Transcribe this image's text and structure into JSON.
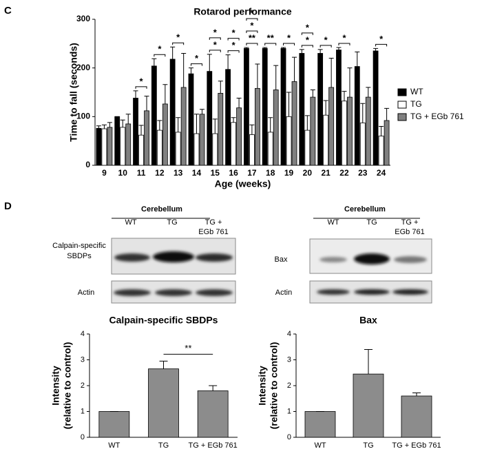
{
  "panels": {
    "c": "C",
    "d": "D"
  },
  "blots": [
    {
      "header": "Cerebellum",
      "lanes": [
        [
          "WT"
        ],
        [
          "TG"
        ],
        [
          "TG +",
          "EGb 761"
        ]
      ],
      "rows": [
        [
          "Calpain-specific",
          "SBDPs"
        ],
        [
          "Actin"
        ]
      ]
    },
    {
      "header": "Cerebellum",
      "lanes": [
        [
          "WT"
        ],
        [
          "TG"
        ],
        [
          "TG +",
          "EGb 761"
        ]
      ],
      "rows": [
        [
          "Bax"
        ],
        [
          "Actin"
        ]
      ]
    }
  ],
  "chart_data": [
    {
      "type": "bar",
      "title": "Rotarod performance",
      "xlabel": "Age (weeks)",
      "ylabel": "Time to fall (seconds)",
      "categories": [
        "9",
        "10",
        "11",
        "12",
        "13",
        "14",
        "15",
        "16",
        "17",
        "18",
        "19",
        "20",
        "21",
        "22",
        "23",
        "24"
      ],
      "ylim": [
        0,
        300
      ],
      "yticks": [
        0,
        100,
        200,
        300
      ],
      "legend": "right",
      "series": [
        {
          "name": "WT",
          "color": "#000000",
          "values": [
            76,
            100,
            138,
            204,
            218,
            188,
            193,
            197,
            240,
            240,
            240,
            230,
            230,
            237,
            203,
            235
          ],
          "errors": [
            5,
            0,
            15,
            15,
            25,
            12,
            35,
            30,
            2,
            2,
            2,
            8,
            8,
            5,
            30,
            5
          ]
        },
        {
          "name": "TG",
          "color": "#ffffff",
          "values": [
            75,
            78,
            62,
            72,
            68,
            65,
            65,
            88,
            63,
            68,
            100,
            72,
            103,
            132,
            87,
            60
          ],
          "errors": [
            8,
            15,
            20,
            20,
            30,
            40,
            30,
            10,
            20,
            30,
            50,
            30,
            30,
            20,
            40,
            20
          ]
        },
        {
          "name": "TG + EGb 761",
          "color": "#808080",
          "values": [
            78,
            85,
            112,
            126,
            160,
            105,
            148,
            118,
            158,
            155,
            172,
            140,
            160,
            140,
            140,
            92
          ],
          "errors": [
            10,
            20,
            30,
            40,
            70,
            10,
            25,
            20,
            50,
            50,
            50,
            15,
            60,
            60,
            20,
            25
          ]
        }
      ],
      "annotations": [
        {
          "x": "11",
          "label": "*"
        },
        {
          "x": "12",
          "label": "*"
        },
        {
          "x": "13",
          "label": "*"
        },
        {
          "x": "14",
          "label": "*"
        },
        {
          "x": "15",
          "label": "*"
        },
        {
          "x": "15",
          "label": "*"
        },
        {
          "x": "16",
          "label": "*"
        },
        {
          "x": "16",
          "label": "*"
        },
        {
          "x": "17",
          "label": "**"
        },
        {
          "x": "17",
          "label": "*"
        },
        {
          "x": "17",
          "label": "*"
        },
        {
          "x": "18",
          "label": "**"
        },
        {
          "x": "19",
          "label": "*"
        },
        {
          "x": "20",
          "label": "*"
        },
        {
          "x": "20",
          "label": "*"
        },
        {
          "x": "21",
          "label": "*"
        },
        {
          "x": "22",
          "label": "*"
        },
        {
          "x": "24",
          "label": "*"
        }
      ]
    },
    {
      "type": "bar",
      "title": "Calpain-specific SBDPs",
      "ylabel": [
        "Intensity",
        "(relative to control)"
      ],
      "categories": [
        "WT",
        "TG",
        "TG + EGb 761"
      ],
      "values": [
        1,
        2.65,
        1.8
      ],
      "errors": [
        0,
        0.3,
        0.2
      ],
      "color": "#8c8c8c",
      "ylim": [
        0,
        4
      ],
      "yticks": [
        0,
        1,
        2,
        3,
        4
      ],
      "annotations": [
        {
          "x": [
            "TG",
            "TG + EGb 761"
          ],
          "label": "**"
        }
      ]
    },
    {
      "type": "bar",
      "title": "Bax",
      "ylabel": [
        "Intensity",
        "(relative to control)"
      ],
      "categories": [
        "WT",
        "TG",
        "TG + EGb 761"
      ],
      "values": [
        1,
        2.45,
        1.6
      ],
      "errors": [
        0,
        0.95,
        0.12
      ],
      "color": "#8c8c8c",
      "ylim": [
        0,
        4
      ],
      "yticks": [
        0,
        1,
        2,
        3,
        4
      ]
    }
  ]
}
